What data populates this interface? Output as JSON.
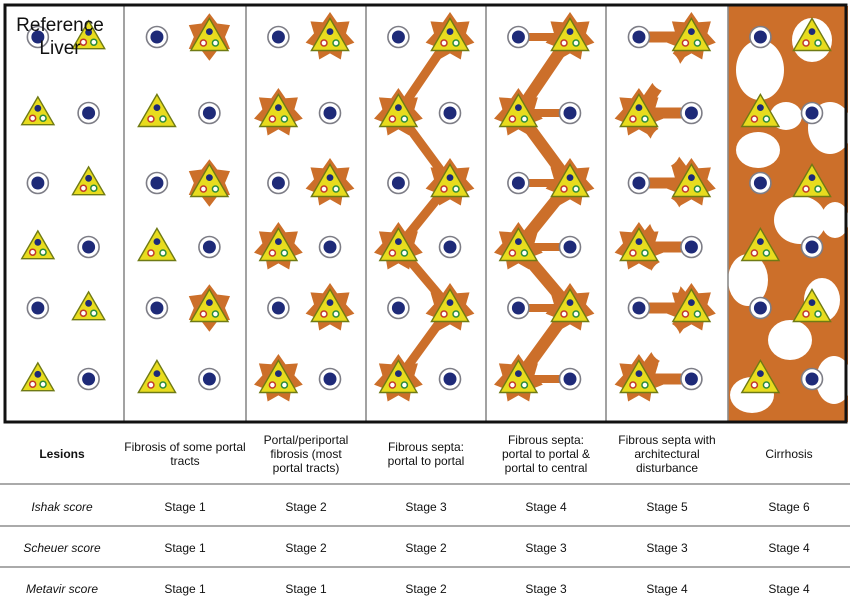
{
  "reference_title": [
    "Reference",
    "Liver"
  ],
  "colors": {
    "fibrosis": "#cc6f2a",
    "portal_tract": "#e8dc1e",
    "portal_tract_edge": "#6f7a14",
    "vein_fill": "#1e2a78",
    "vein_ring": "#7d7d86",
    "panel_border": "#8a8a8a",
    "outer_border": "#111111"
  },
  "columns": [
    {
      "label": "Lesions",
      "ishak": "Ishak score",
      "scheuer": "Scheuer score",
      "metavir": "Metavir score"
    },
    {
      "label": "Fibrosis of some portal tracts",
      "ishak": "Stage 1",
      "scheuer": "Stage 1",
      "metavir": "Stage 1"
    },
    {
      "label": "Portal/periportal fibrosis (most portal tracts)",
      "ishak": "Stage 2",
      "scheuer": "Stage 2",
      "metavir": "Stage 1"
    },
    {
      "label": "Fibrous septa: portal to portal",
      "ishak": "Stage 3",
      "scheuer": "Stage 2",
      "metavir": "Stage 2"
    },
    {
      "label": "Fibrous septa: portal to portal & portal to central",
      "ishak": "Stage 4",
      "scheuer": "Stage 3",
      "metavir": "Stage 3"
    },
    {
      "label": "Fibrous septa with architectural disturbance",
      "ishak": "Stage 5",
      "scheuer": "Stage 3",
      "metavir": "Stage 4"
    },
    {
      "label": "Cirrhosis",
      "ishak": "Stage 6",
      "scheuer": "Stage 4",
      "metavir": "Stage 4"
    }
  ]
}
